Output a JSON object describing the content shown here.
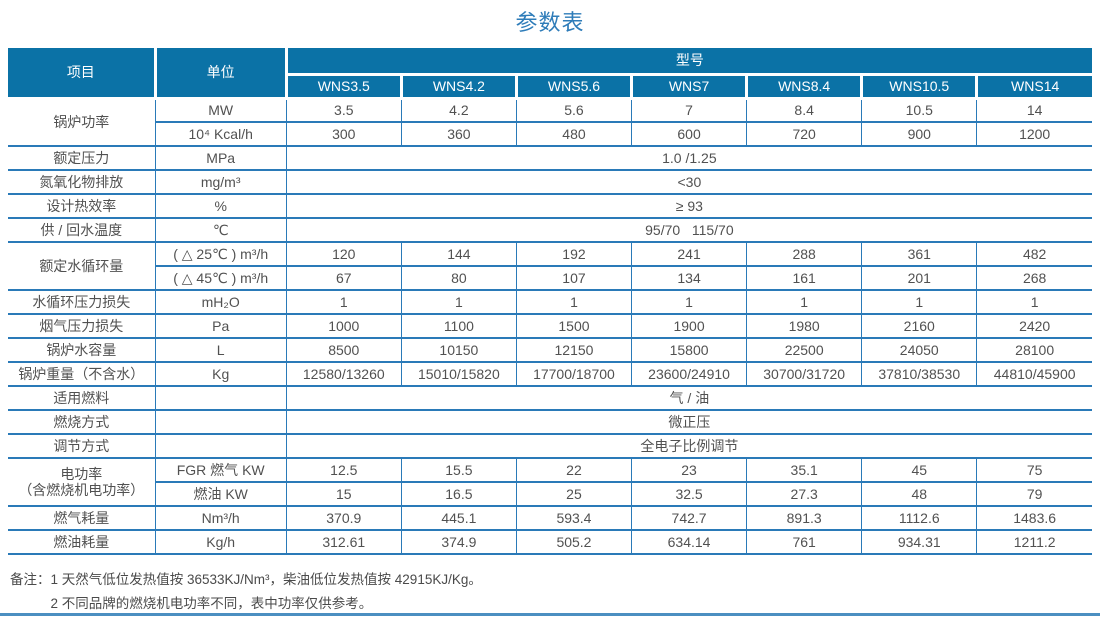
{
  "title": "参数表",
  "colors": {
    "header_bg": "#0b72a6",
    "table_border": "#2a7ab8",
    "title_text": "#2e7cb9",
    "body_text": "#515151",
    "bottom_rule": "#4b8fc1"
  },
  "table": {
    "header": {
      "item": "项目",
      "unit": "单位",
      "model_group": "型号",
      "models": [
        "WNS3.5",
        "WNS4.2",
        "WNS5.6",
        "WNS7",
        "WNS8.4",
        "WNS10.5",
        "WNS14"
      ]
    },
    "rows": [
      {
        "item": "锅炉功率",
        "rowspan": 2,
        "unit": "MW",
        "values": [
          "3.5",
          "4.2",
          "5.6",
          "7",
          "8.4",
          "10.5",
          "14"
        ]
      },
      {
        "unit": "10⁴ Kcal/h",
        "values": [
          "300",
          "360",
          "480",
          "600",
          "720",
          "900",
          "1200"
        ]
      },
      {
        "item": "额定压力",
        "unit": "MPa",
        "span": "1.0 /1.25"
      },
      {
        "item": "氮氧化物排放",
        "unit": "mg/m³",
        "span": "<30"
      },
      {
        "item": "设计热效率",
        "unit": "%",
        "span": "≥ 93"
      },
      {
        "item": "供 / 回水温度",
        "unit": "℃",
        "span": "95/70   115/70"
      },
      {
        "item": "额定水循环量",
        "rowspan": 2,
        "unit": "( △ 25℃ ) m³/h",
        "values": [
          "120",
          "144",
          "192",
          "241",
          "288",
          "361",
          "482"
        ]
      },
      {
        "unit": "( △ 45℃ ) m³/h",
        "values": [
          "67",
          "80",
          "107",
          "134",
          "161",
          "201",
          "268"
        ]
      },
      {
        "item": "水循环压力损失",
        "unit": "mH₂O",
        "values": [
          "1",
          "1",
          "1",
          "1",
          "1",
          "1",
          "1"
        ]
      },
      {
        "item": "烟气压力损失",
        "unit": "Pa",
        "values": [
          "1000",
          "1100",
          "1500",
          "1900",
          "1980",
          "2160",
          "2420"
        ]
      },
      {
        "item": "锅炉水容量",
        "unit": "L",
        "values": [
          "8500",
          "10150",
          "12150",
          "15800",
          "22500",
          "24050",
          "28100"
        ]
      },
      {
        "item": "锅炉重量（不含水）",
        "unit": "Kg",
        "values": [
          "12580/13260",
          "15010/15820",
          "17700/18700",
          "23600/24910",
          "30700/31720",
          "37810/38530",
          "44810/45900"
        ]
      },
      {
        "item": "适用燃料",
        "unit": "",
        "span": "气 / 油"
      },
      {
        "item": "燃烧方式",
        "unit": "",
        "span": "微正压"
      },
      {
        "item": "调节方式",
        "unit": "",
        "span": "全电子比例调节"
      },
      {
        "item": "电功率\n（含燃烧机电功率）",
        "rowspan": 2,
        "unit": "FGR 燃气 KW",
        "values": [
          "12.5",
          "15.5",
          "22",
          "23",
          "35.1",
          "45",
          "75"
        ]
      },
      {
        "unit": "燃油 KW",
        "values": [
          "15",
          "16.5",
          "25",
          "32.5",
          "27.3",
          "48",
          "79"
        ]
      },
      {
        "item": "燃气耗量",
        "unit": "Nm³/h",
        "values": [
          "370.9",
          "445.1",
          "593.4",
          "742.7",
          "891.3",
          "1112.6",
          "1483.6"
        ]
      },
      {
        "item": "燃油耗量",
        "unit": "Kg/h",
        "values": [
          "312.61",
          "374.9",
          "505.2",
          "634.14",
          "761",
          "934.31",
          "1211.2"
        ]
      }
    ]
  },
  "notes": {
    "label": "备注：",
    "lines": [
      "1  天然气低位发热值按 36533KJ/Nm³，柴油低位发热值按 42915KJ/Kg。",
      "2  不同品牌的燃烧机电功率不同，表中功率仅供参考。"
    ]
  }
}
